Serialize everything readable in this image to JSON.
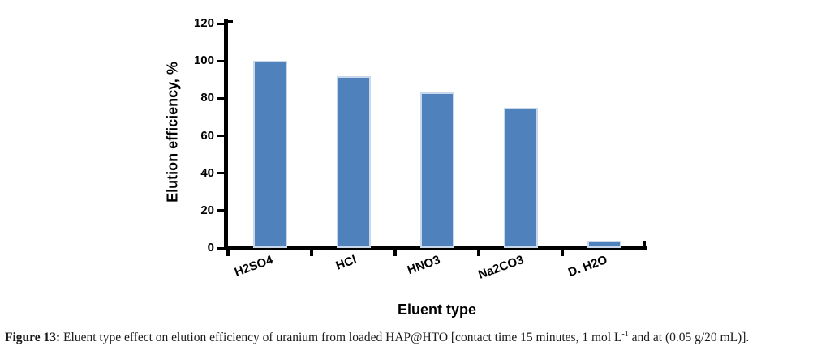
{
  "caption": {
    "label": "Figure 13:",
    "body_before_sup": " Eluent type effect on elution efficiency of uranium from loaded HAP@HTO [contact time 15 minutes, 1 mol L",
    "superscript": "-1",
    "body_after_sup": " and at (0.05 g/20 mL)]."
  },
  "chart_data": {
    "type": "bar",
    "title": "",
    "xlabel": "Eluent type",
    "ylabel": "Elution efficiency, %",
    "categories": [
      "H2SO4",
      "HCl",
      "HNO3",
      "Na2CO3",
      "D. H2O"
    ],
    "values": [
      100,
      92,
      83,
      75,
      4
    ],
    "ylim": [
      0,
      120
    ],
    "yticks": [
      0,
      20,
      40,
      60,
      80,
      100,
      120
    ],
    "x_label_rotation_deg": -20,
    "grid": false,
    "legend": false,
    "bar_color": "#4F81BD",
    "bar_border_color": "#C9D7EB",
    "axis_color": "#000000"
  }
}
